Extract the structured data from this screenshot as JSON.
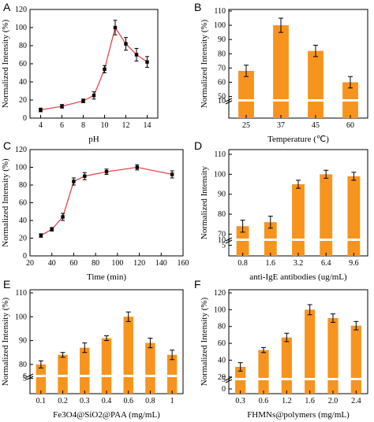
{
  "colors": {
    "bar": "#F7941D",
    "line": "#E8474F",
    "marker": "#000000",
    "axis": "#000000"
  },
  "chart_data": [
    {
      "panel": "A",
      "type": "line",
      "x": [
        4,
        6,
        8,
        9,
        10,
        11,
        12,
        13,
        14
      ],
      "y": [
        9,
        13,
        19,
        25,
        54,
        100,
        82,
        70,
        62
      ],
      "err": [
        2,
        2,
        2,
        4,
        4,
        8,
        7,
        7,
        6
      ],
      "xlabel": "pH",
      "ylabel": "Normalized Intensity (%)",
      "xlim": [
        3,
        15
      ],
      "ylim": [
        0,
        120
      ],
      "xticks": [
        "4",
        "6",
        "8",
        "10",
        "12",
        "14"
      ],
      "yticks": [
        "0",
        "20",
        "40",
        "60",
        "80",
        "100",
        "120"
      ]
    },
    {
      "panel": "B",
      "type": "bar",
      "categories": [
        "25",
        "37",
        "45",
        "60"
      ],
      "values": [
        68,
        100,
        82,
        60
      ],
      "err": [
        4,
        5,
        4,
        4
      ],
      "xlabel": "Temperature (℃)",
      "ylabel": "Normalized Intensity (%)",
      "broken_axis": true,
      "yticks": [
        "10",
        "50",
        "60",
        "70",
        "80",
        "90",
        "100",
        "110"
      ]
    },
    {
      "panel": "C",
      "type": "line",
      "x": [
        30,
        40,
        50,
        60,
        70,
        90,
        118,
        150
      ],
      "y": [
        23,
        30,
        44,
        84,
        90,
        95,
        100,
        92
      ],
      "err": [
        2,
        2,
        4,
        4,
        4,
        3,
        3,
        4
      ],
      "xlabel": "Time (min)",
      "ylabel": "Normalized Intensity (%)",
      "xlim": [
        20,
        160
      ],
      "ylim": [
        0,
        120
      ],
      "xticks": [
        "20",
        "40",
        "60",
        "80",
        "100",
        "120",
        "140",
        "160"
      ],
      "yticks": [
        "0",
        "20",
        "40",
        "60",
        "80",
        "100",
        "120"
      ]
    },
    {
      "panel": "D",
      "type": "bar",
      "categories": [
        "0.8",
        "1.6",
        "3.2",
        "6.4",
        "9.6"
      ],
      "values": [
        74,
        76,
        95,
        100,
        99
      ],
      "err": [
        3,
        3,
        2,
        2,
        2
      ],
      "xlabel": "anti-IgE antibodies (ug/mL)",
      "ylabel": "Normalized Intensity",
      "broken_axis": true,
      "yticks": [
        "5",
        "10",
        "70",
        "80",
        "90",
        "100",
        "110"
      ]
    },
    {
      "panel": "E",
      "type": "bar",
      "categories": [
        "0.1",
        "0.2",
        "0.3",
        "0.4",
        "0.6",
        "0.8",
        "1"
      ],
      "values": [
        80,
        84,
        87,
        91,
        100,
        89,
        84
      ],
      "err": [
        1.5,
        1,
        2,
        1,
        2,
        2,
        2
      ],
      "xlabel": "Fe3O4@SiO2@PAA (mg/mL)",
      "ylabel": "Normalized Intensity (%)",
      "broken_axis": true,
      "yticks": [
        "5",
        "6",
        "80",
        "90",
        "100",
        "110"
      ]
    },
    {
      "panel": "F",
      "type": "bar",
      "categories": [
        "0.3",
        "0.6",
        "1.2",
        "1.6",
        "2.0",
        "2.4"
      ],
      "values": [
        32,
        52,
        67,
        100,
        90,
        81
      ],
      "err": [
        5,
        3,
        5,
        6,
        5,
        5
      ],
      "xlabel": "FHMNs@polymers (mg/mL)",
      "ylabel": "Normalized Intensity (%)",
      "broken_axis": true,
      "yticks": [
        "0",
        "5",
        "20",
        "40",
        "60",
        "80",
        "100",
        "120"
      ]
    }
  ]
}
